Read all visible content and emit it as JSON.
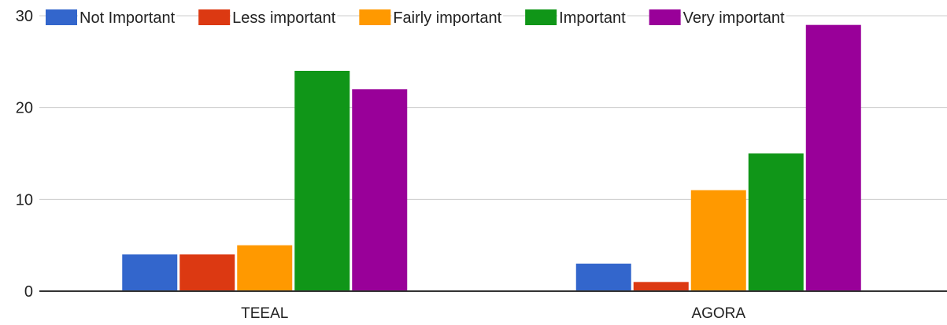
{
  "chart_data": {
    "type": "bar",
    "title": "",
    "xlabel": "",
    "ylabel": "",
    "ylim": [
      0,
      30
    ],
    "yticks": [
      0,
      10,
      20,
      30
    ],
    "grid": true,
    "legend_position": "top",
    "categories": [
      "TEEAL",
      "AGORA"
    ],
    "series": [
      {
        "name": "Not Important",
        "color": "#3366cc",
        "values": [
          4,
          3
        ]
      },
      {
        "name": "Less important",
        "color": "#dc3912",
        "values": [
          4,
          1
        ]
      },
      {
        "name": "Fairly important",
        "color": "#ff9900",
        "values": [
          5,
          11
        ]
      },
      {
        "name": "Important",
        "color": "#109618",
        "values": [
          24,
          15
        ]
      },
      {
        "name": "Very important",
        "color": "#990099",
        "values": [
          22,
          29
        ]
      }
    ]
  }
}
